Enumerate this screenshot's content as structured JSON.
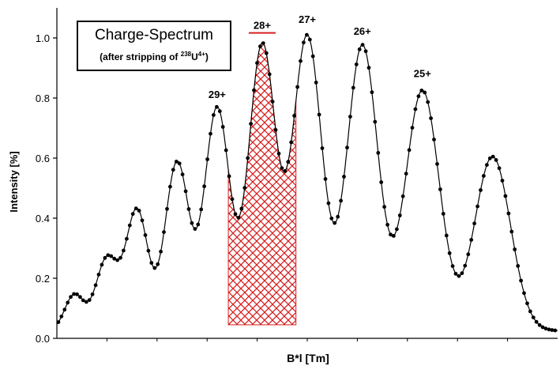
{
  "chart_data": {
    "type": "line",
    "title": "Charge-Spectrum",
    "subtitle": {
      "before": "(after stripping of ",
      "isotope_mass": "238",
      "element": "U",
      "charge": "4+",
      "after": ")"
    },
    "xlabel": "B*l [Tm]",
    "ylabel": "Intensity [%]",
    "ylim": [
      0.0,
      1.1
    ],
    "yticks": [
      "0.0",
      "0.2",
      "0.4",
      "0.6",
      "0.8",
      "1.0"
    ],
    "xlim": [
      0,
      100
    ],
    "grid": false,
    "series_color": "#000000",
    "highlight_color": "#d62020",
    "peaks": [
      {
        "x": 3.5,
        "height": 0.12,
        "width": 1.9
      },
      {
        "x": 10.0,
        "height": 0.24,
        "width": 2.2
      },
      {
        "x": 16.0,
        "height": 0.4,
        "width": 2.2
      },
      {
        "x": 24.0,
        "height": 0.56,
        "width": 2.4
      },
      {
        "x": 32.0,
        "height": 0.74,
        "width": 2.5
      },
      {
        "x": 41.0,
        "height": 0.95,
        "width": 2.7
      },
      {
        "x": 50.0,
        "height": 0.98,
        "width": 2.9
      },
      {
        "x": 61.0,
        "height": 0.95,
        "width": 3.1
      },
      {
        "x": 73.0,
        "height": 0.8,
        "width": 3.4
      },
      {
        "x": 87.0,
        "height": 0.58,
        "width": 3.6
      }
    ],
    "baseline": 0.025,
    "highlight_peak_index": 5,
    "peak_labels": [
      {
        "text": "29+",
        "x": 32.0,
        "y": 0.8,
        "underline": false
      },
      {
        "text": "28+",
        "x": 41.0,
        "y": 1.03,
        "underline": true
      },
      {
        "text": "27+",
        "x": 50.0,
        "y": 1.05,
        "underline": false
      },
      {
        "text": "26+",
        "x": 61.0,
        "y": 1.01,
        "underline": false
      },
      {
        "text": "25+",
        "x": 73.0,
        "y": 0.87,
        "underline": false
      }
    ]
  }
}
